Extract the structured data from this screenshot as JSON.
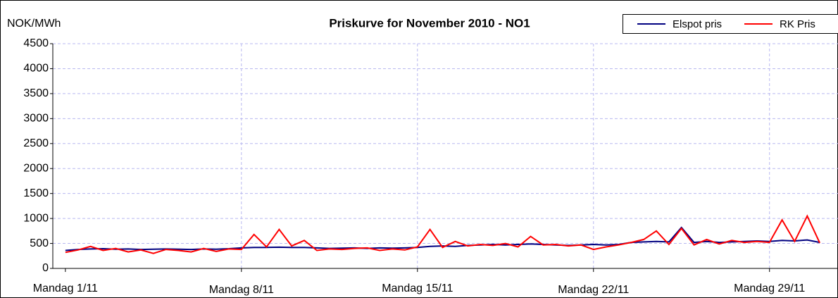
{
  "chart_data": {
    "type": "line",
    "title": "Priskurve for November 2010 - NO1",
    "y_label": "NOK/MWh",
    "x": [
      0,
      0.5,
      1,
      1.5,
      2,
      2.5,
      3,
      3.5,
      4,
      4.5,
      5,
      5.5,
      6,
      6.5,
      7,
      7.5,
      8,
      8.5,
      9,
      9.5,
      10,
      10.5,
      11,
      11.5,
      12,
      12.5,
      13,
      13.5,
      14,
      14.5,
      15,
      15.5,
      16,
      16.5,
      17,
      17.5,
      18,
      18.5,
      19,
      19.5,
      20,
      20.5,
      21,
      21.5,
      22,
      22.5,
      23,
      23.5,
      24,
      24.5,
      25,
      25.5,
      26,
      26.5,
      27,
      27.5,
      28,
      28.5,
      29,
      29.5,
      30
    ],
    "series": [
      {
        "name": "Elspot pris",
        "color": "#000080",
        "values": [
          360,
          380,
          390,
          395,
          385,
          390,
          380,
          385,
          390,
          385,
          380,
          390,
          385,
          395,
          410,
          420,
          420,
          425,
          420,
          420,
          410,
          400,
          405,
          410,
          400,
          410,
          405,
          410,
          420,
          440,
          450,
          440,
          460,
          470,
          480,
          470,
          480,
          490,
          480,
          470,
          460,
          470,
          480,
          470,
          480,
          520,
          530,
          540,
          530,
          820,
          520,
          540,
          520,
          530,
          540,
          550,
          540,
          560,
          550,
          570,
          520
        ]
      },
      {
        "name": "RK Pris",
        "color": "#ff0000",
        "values": [
          320,
          370,
          440,
          360,
          400,
          330,
          370,
          300,
          380,
          360,
          330,
          400,
          340,
          390,
          380,
          680,
          430,
          780,
          450,
          560,
          360,
          390,
          380,
          400,
          410,
          360,
          390,
          370,
          430,
          780,
          420,
          540,
          450,
          480,
          460,
          500,
          430,
          640,
          470,
          480,
          450,
          470,
          380,
          430,
          470,
          520,
          580,
          750,
          480,
          800,
          470,
          580,
          490,
          560,
          520,
          540,
          520,
          970,
          540,
          1050,
          510
        ]
      }
    ],
    "xlim": [
      -0.5,
      30.5
    ],
    "xticks": [
      {
        "value": 0,
        "label": "Mandag 1/11"
      },
      {
        "value": 7,
        "label": "Mandag 8/11"
      },
      {
        "value": 14,
        "label": "Mandag  15/11"
      },
      {
        "value": 21,
        "label": "Mandag  22/11"
      },
      {
        "value": 28,
        "label": "Mandag 29/11"
      }
    ],
    "ylim": [
      0,
      4500
    ],
    "yticks": [
      0,
      500,
      1000,
      1500,
      2000,
      2500,
      3000,
      3500,
      4000,
      4500
    ],
    "grid": true
  }
}
